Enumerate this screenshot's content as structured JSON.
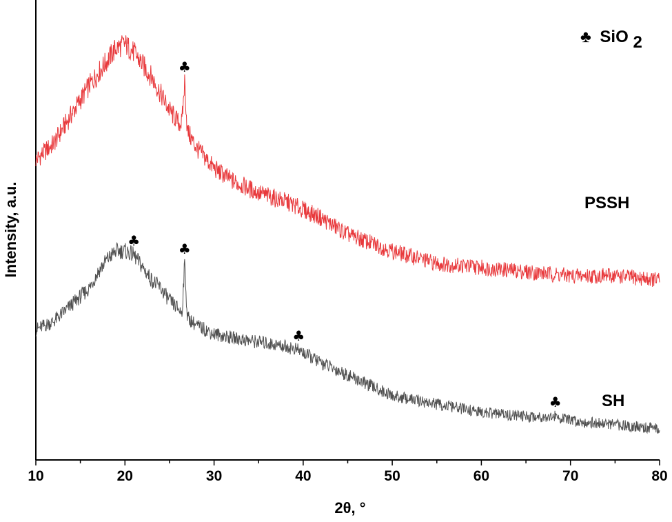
{
  "chart_data": {
    "type": "line",
    "xlabel": "2θ, °",
    "ylabel": "Intensity, a.u.",
    "xlim": [
      10,
      80
    ],
    "xticks": [
      10,
      20,
      30,
      40,
      50,
      60,
      70,
      80
    ],
    "xtick_labels": [
      "10",
      "20",
      "30",
      "40",
      "50",
      "60",
      "70",
      "80"
    ],
    "ylim": [
      0,
      100
    ],
    "y_ticks_shown": false,
    "grid": false,
    "legend": {
      "placement": "top-right",
      "symbol": "♣",
      "text": "SiO",
      "subscript": "2"
    },
    "series": [
      {
        "name": "PSSH",
        "color": "#e8393c",
        "label_position": "right",
        "x": [
          10,
          12,
          14,
          16,
          17,
          18,
          19,
          20,
          21,
          22,
          23,
          24,
          25,
          26,
          26.4,
          26.7,
          27,
          28,
          30,
          32,
          35,
          38,
          40,
          42,
          45,
          50,
          55,
          60,
          65,
          70,
          75,
          80
        ],
        "y": [
          68,
          72,
          79,
          86,
          89,
          92,
          95,
          96,
          94,
          91,
          88,
          84,
          80,
          77,
          77,
          87,
          75,
          71,
          66,
          63,
          60,
          58,
          56,
          54,
          50,
          46,
          43,
          42,
          41,
          40,
          40,
          39
        ],
        "peak_markers": [
          26.7
        ]
      },
      {
        "name": "SH",
        "color": "#505050",
        "label_position": "right",
        "x": [
          10,
          12,
          14,
          16,
          17,
          18,
          19,
          20,
          21,
          22,
          23,
          24,
          25,
          26,
          26.4,
          26.7,
          27,
          28,
          30,
          32,
          35,
          38,
          39.5,
          42,
          45,
          50,
          55,
          60,
          65,
          68.3,
          70,
          75,
          80
        ],
        "y": [
          27,
          29,
          33,
          37,
          41,
          44,
          46,
          46,
          45,
          42,
          39,
          37,
          34,
          32,
          31,
          43,
          30,
          28,
          26,
          25,
          24,
          23,
          22,
          19,
          16,
          11,
          9,
          7,
          6,
          6,
          5,
          4,
          3
        ],
        "peak_markers": [
          21,
          26.7,
          39.5,
          68.3
        ]
      }
    ]
  }
}
